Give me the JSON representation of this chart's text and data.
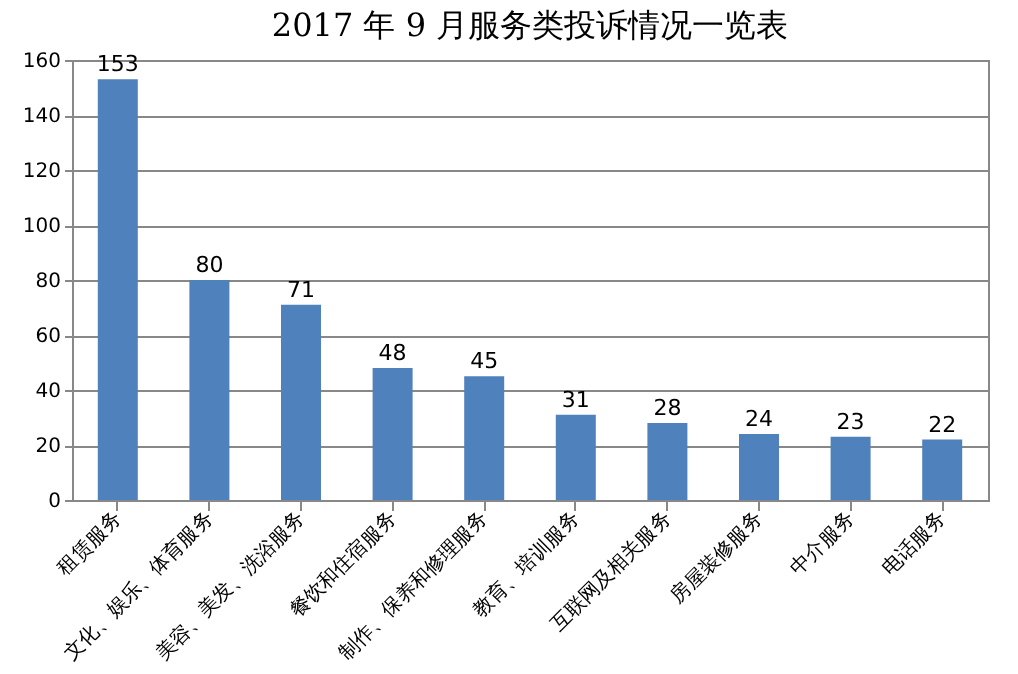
{
  "chart_data": {
    "type": "bar",
    "title": "2017 年 9 月服务类投诉情况一览表",
    "categories": [
      "租赁服务",
      "文化、娱乐、体育服务",
      "美容、美发、洗浴服务",
      "餐饮和住宿服务",
      "制作、保养和修理服务",
      "教育、培训服务",
      "互联网及相关服务",
      "房屋装修服务",
      "中介服务",
      "电话服务"
    ],
    "values": [
      153,
      80,
      71,
      48,
      45,
      31,
      28,
      24,
      23,
      22
    ],
    "color": "#4f81bd",
    "ylim": [
      0,
      160
    ],
    "yticks": [
      0,
      20,
      40,
      60,
      80,
      100,
      120,
      140,
      160
    ],
    "grid": "y",
    "data_labels": true
  }
}
